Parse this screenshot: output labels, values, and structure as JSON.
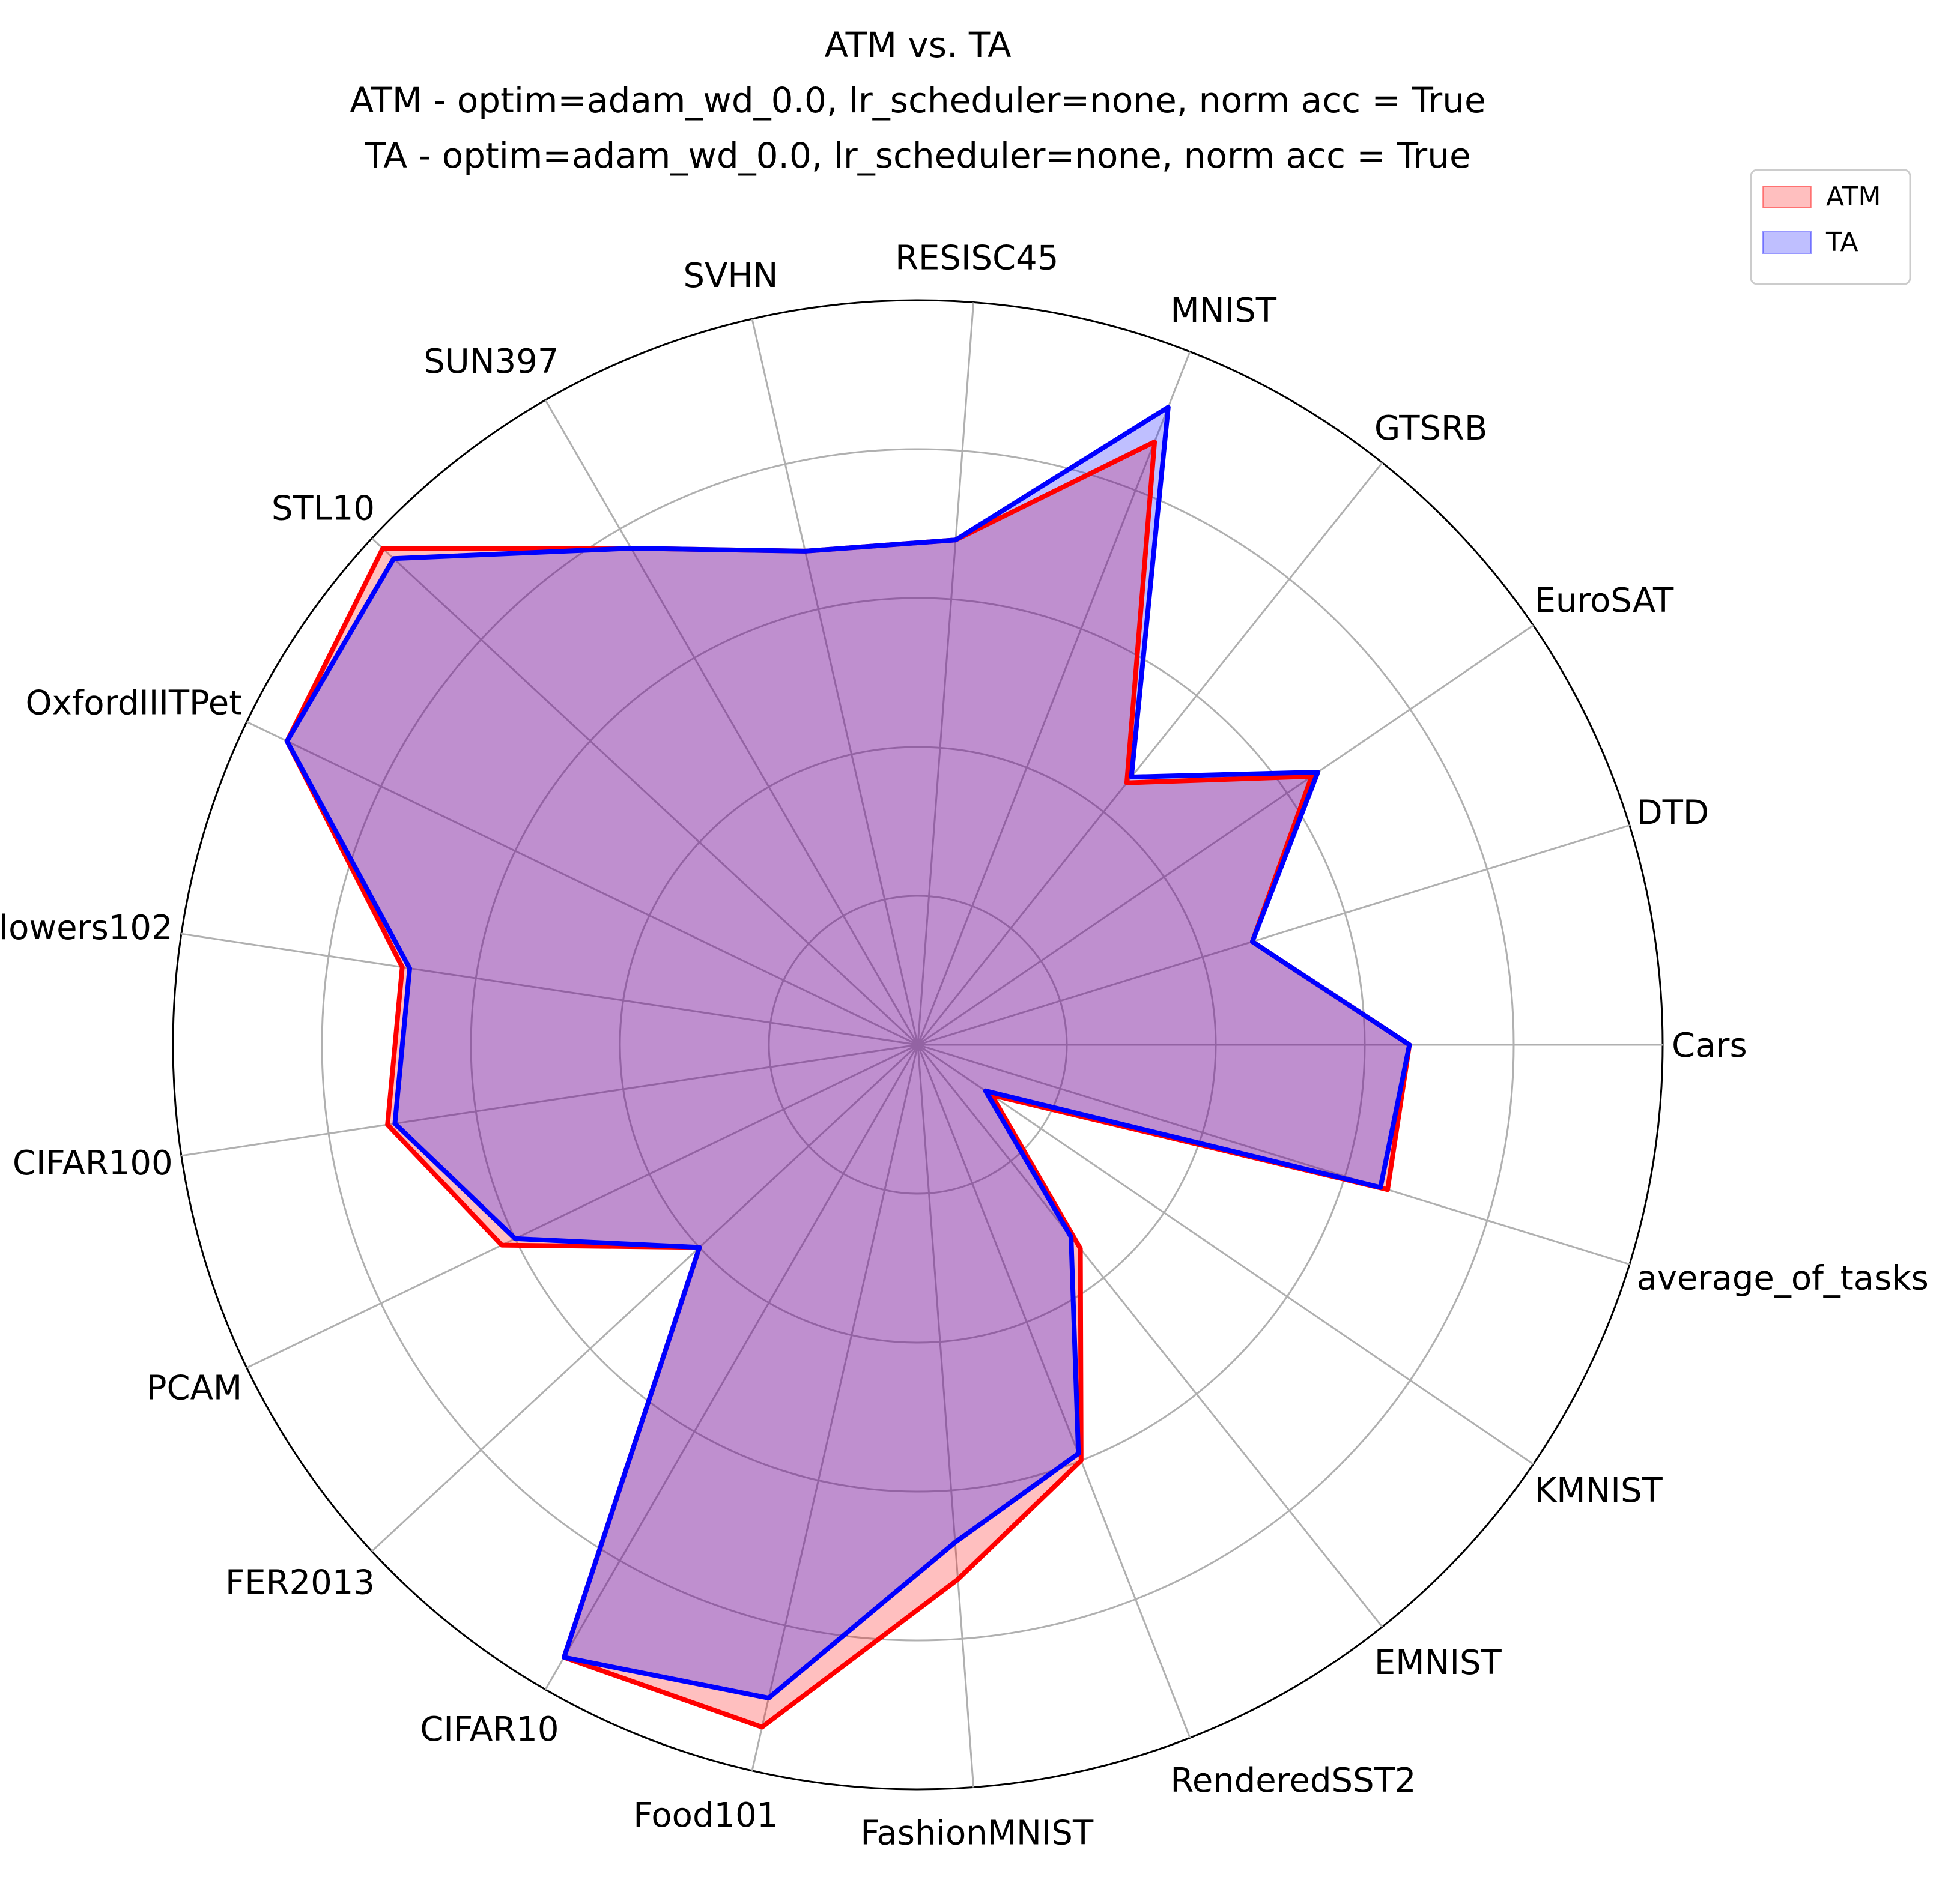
{
  "chart_data": {
    "type": "radar",
    "title_lines": [
      "ATM vs. TA",
      "ATM - optim=adam_wd_0.0, lr_scheduler=none, norm acc = True",
      "TA  - optim=adam_wd_0.0, lr_scheduler=none, norm acc = True"
    ],
    "categories": [
      "Cars",
      "DTD",
      "EuroSAT",
      "GTSRB",
      "MNIST",
      "RESISC45",
      "SVHN",
      "SUN397",
      "STL10",
      "OxfordIIITPet",
      "Flowers102",
      "CIFAR100",
      "PCAM",
      "FER2013",
      "CIFAR10",
      "Food101",
      "FashionMNIST",
      "RenderedSST2",
      "EMNIST",
      "KMNIST",
      "average_of_tasks"
    ],
    "rlim": [
      0,
      1.0
    ],
    "radial_gridlines": [
      0.2,
      0.4,
      0.6,
      0.8,
      1.0
    ],
    "grid": true,
    "legend_position": "top-right",
    "series": [
      {
        "name": "ATM",
        "color": "#ff0000",
        "fill": "#ffbbbb",
        "values": [
          0.66,
          0.47,
          0.64,
          0.45,
          0.87,
          0.68,
          0.68,
          0.77,
          0.98,
          0.94,
          0.7,
          0.72,
          0.62,
          0.4,
          0.95,
          0.94,
          0.72,
          0.6,
          0.35,
          0.12,
          0.66
        ]
      },
      {
        "name": "TA",
        "color": "#0000ff",
        "fill": "#bbbbff",
        "values": [
          0.66,
          0.47,
          0.65,
          0.46,
          0.92,
          0.68,
          0.68,
          0.77,
          0.96,
          0.94,
          0.69,
          0.71,
          0.6,
          0.4,
          0.95,
          0.9,
          0.67,
          0.59,
          0.33,
          0.11,
          0.65
        ]
      }
    ]
  }
}
